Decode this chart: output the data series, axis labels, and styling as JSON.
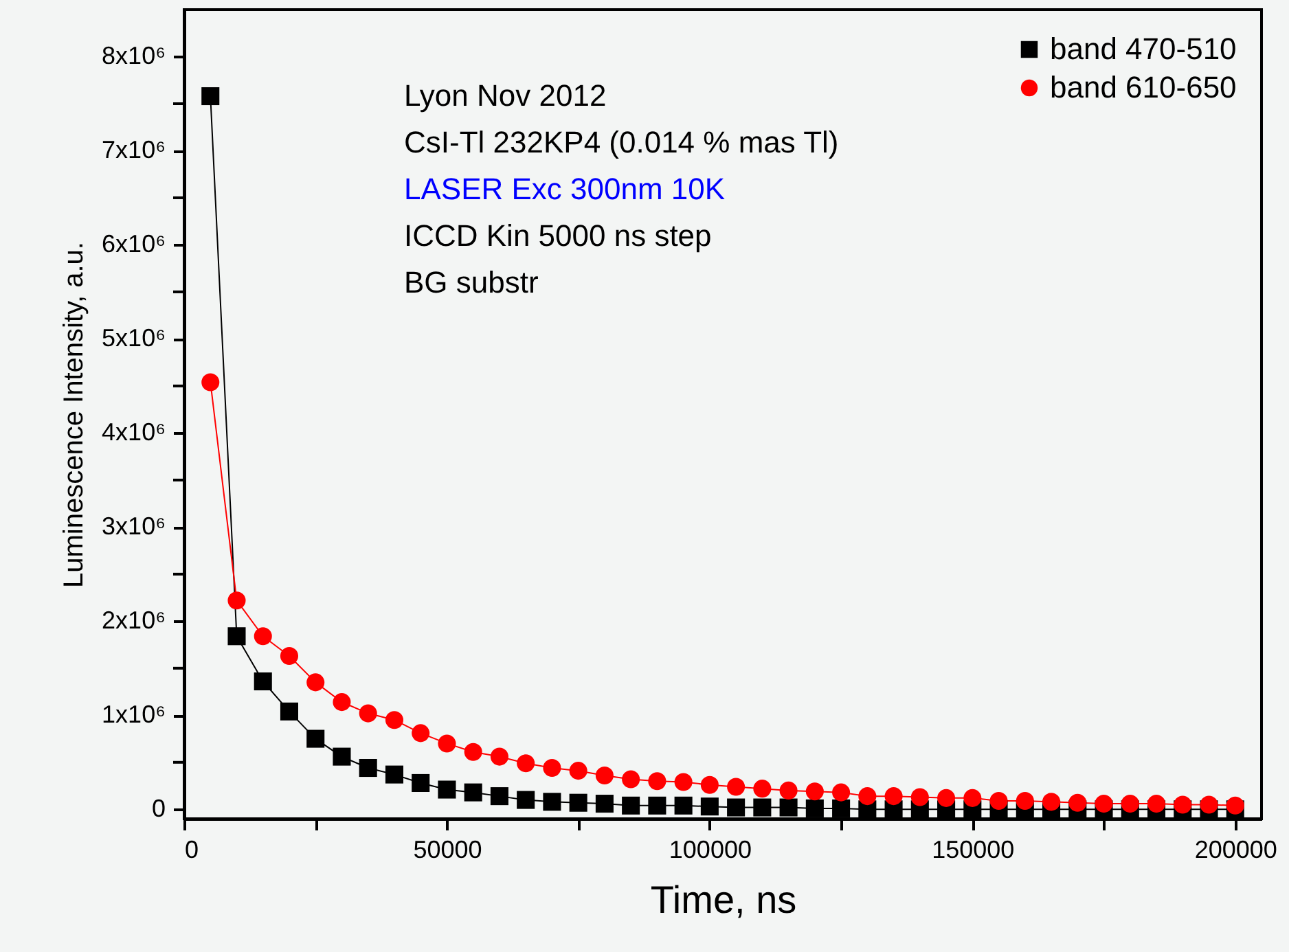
{
  "chart_data": {
    "type": "line",
    "xlabel": "Time, ns",
    "ylabel": "Luminescence Intensity, a.u.",
    "annotations": [
      "Lyon Nov 2012",
      "CsI-Tl 232KP4 (0.014 % mas Tl)",
      "LASER Exc 300nm 10K",
      "ICCD Kin 5000 ns step",
      "BG substr"
    ],
    "x": [
      5000,
      10000,
      15000,
      20000,
      25000,
      30000,
      35000,
      40000,
      45000,
      50000,
      55000,
      60000,
      65000,
      70000,
      75000,
      80000,
      85000,
      90000,
      95000,
      100000,
      105000,
      110000,
      115000,
      120000,
      125000,
      130000,
      135000,
      140000,
      145000,
      150000,
      155000,
      160000,
      165000,
      170000,
      175000,
      180000,
      185000,
      190000,
      195000,
      200000
    ],
    "series": [
      {
        "name": "band 470-510",
        "color": "#000000",
        "marker": "square",
        "values": [
          7580000,
          1840000,
          1360000,
          1040000,
          750000,
          560000,
          440000,
          370000,
          280000,
          210000,
          180000,
          140000,
          100000,
          80000,
          70000,
          60000,
          40000,
          40000,
          40000,
          30000,
          20000,
          20000,
          20000,
          10000,
          10000,
          0,
          0,
          0,
          0,
          0,
          0,
          0,
          0,
          0,
          0,
          0,
          0,
          0,
          0,
          0
        ]
      },
      {
        "name": "band 610-650",
        "color": "#ff0000",
        "marker": "circle",
        "values": [
          4540000,
          2220000,
          1840000,
          1630000,
          1350000,
          1140000,
          1020000,
          950000,
          810000,
          700000,
          610000,
          560000,
          490000,
          440000,
          410000,
          360000,
          320000,
          300000,
          290000,
          260000,
          240000,
          220000,
          200000,
          190000,
          180000,
          140000,
          140000,
          130000,
          120000,
          120000,
          90000,
          90000,
          80000,
          70000,
          60000,
          60000,
          60000,
          50000,
          50000,
          40000
        ]
      }
    ],
    "xlim": [
      0,
      205000
    ],
    "xticks": [
      0,
      {
        "value": 25000,
        "label": null
      },
      50000,
      {
        "value": 75000,
        "label": null
      },
      100000,
      {
        "value": 125000,
        "label": null
      },
      150000,
      {
        "value": 175000,
        "label": null
      },
      200000
    ],
    "ylim": [
      -100000,
      8500000
    ],
    "yticks": [
      {
        "value": 0,
        "label": "0"
      },
      {
        "value": 500000,
        "label": null
      },
      {
        "value": 1000000,
        "label": "1x10⁶"
      },
      {
        "value": 1500000,
        "label": null
      },
      {
        "value": 2000000,
        "label": "2x10⁶"
      },
      {
        "value": 2500000,
        "label": null
      },
      {
        "value": 3000000,
        "label": "3x10⁶"
      },
      {
        "value": 3500000,
        "label": null
      },
      {
        "value": 4000000,
        "label": "4x10⁶"
      },
      {
        "value": 4500000,
        "label": null
      },
      {
        "value": 5000000,
        "label": "5x10⁶"
      },
      {
        "value": 5500000,
        "label": null
      },
      {
        "value": 6000000,
        "label": "6x10⁶"
      },
      {
        "value": 6500000,
        "label": null
      },
      {
        "value": 7000000,
        "label": "7x10⁶"
      },
      {
        "value": 7500000,
        "label": null
      },
      {
        "value": 8000000,
        "label": "8x10⁶"
      }
    ],
    "grid": false,
    "legend": "top right",
    "line_style": "solid"
  }
}
